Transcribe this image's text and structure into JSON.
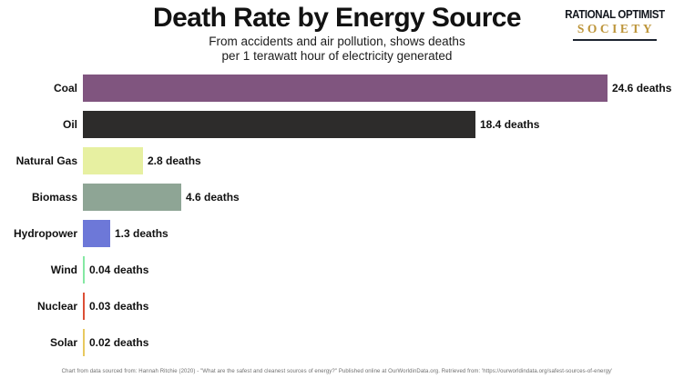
{
  "header": {
    "title": "Death Rate by Energy Source",
    "subtitle_line1": "From accidents and air pollution, shows deaths",
    "subtitle_line2": "per 1 terawatt hour of electricity generated"
  },
  "logo": {
    "line1": "RATIONAL OPTIMIST",
    "line2": "SOCIETY",
    "gold_color": "#bd953a"
  },
  "chart_data": {
    "type": "bar",
    "orientation": "horizontal",
    "title": "Death Rate by Energy Source",
    "unit": "deaths per 1 terawatt hour of electricity generated",
    "categories": [
      "Coal",
      "Oil",
      "Natural Gas",
      "Biomass",
      "Hydropower",
      "Wind",
      "Nuclear",
      "Solar"
    ],
    "values": [
      24.6,
      18.4,
      2.8,
      4.6,
      1.3,
      0.04,
      0.03,
      0.02
    ],
    "value_labels": [
      "24.6 deaths",
      "18.4 deaths",
      "2.8 deaths",
      "4.6 deaths",
      "1.3 deaths",
      "0.04 deaths",
      "0.03 deaths",
      "0.02 deaths"
    ],
    "bar_colors": [
      "#80557f",
      "#2d2c2b",
      "#e7f0a1",
      "#8ea595",
      "#6d78d8",
      "#85e8a3",
      "#dc4f36",
      "#e8c95f"
    ],
    "xlim": [
      0,
      24.6
    ],
    "grid": false,
    "legend": false
  },
  "footer": {
    "source": "Chart from data sourced from: Hannah Ritchie (2020) - \"What are the safest and cleanest sources of energy?\" Published online at OurWorldinData.org. Retrieved from: 'https://ourworldindata.org/safest-sources-of-energy'"
  }
}
